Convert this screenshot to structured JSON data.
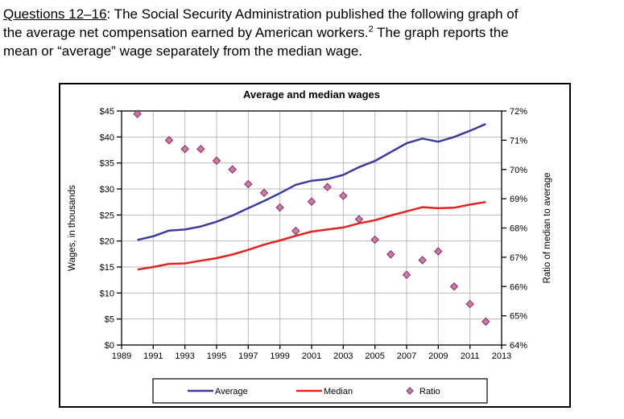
{
  "intro": {
    "line1": {
      "label": "Questions 12–16",
      "rest": ": The Social Security Administration published the following graph of"
    },
    "line2": {
      "pre": "the average net compensation earned by American workers.",
      "footnote_marker": "2",
      "post": " The graph reports the"
    },
    "line3": {
      "text": "mean or “average” wage separately from the median wage."
    }
  },
  "chart_data": {
    "type": "line",
    "title": "Average and median wages",
    "grid": true,
    "x_axis": {
      "range": [
        1989,
        2013
      ],
      "tick_labels": [
        "1989",
        "1991",
        "1993",
        "1995",
        "1997",
        "1999",
        "2001",
        "2003",
        "2005",
        "2007",
        "2009",
        "2011",
        "2013"
      ]
    },
    "y_axis_left": {
      "label": "Wages, in thousands",
      "range": [
        0,
        45
      ],
      "tick_labels": [
        "$45",
        "$40",
        "$35",
        "$30",
        "$25",
        "$20",
        "$15",
        "$10",
        "$5",
        "$0"
      ]
    },
    "y_axis_right": {
      "label": "Ratio of median to average",
      "range": [
        64,
        72
      ],
      "tick_labels": [
        "72%",
        "71%",
        "70%",
        "69%",
        "68%",
        "67%",
        "66%",
        "65%",
        "64%"
      ]
    },
    "series": [
      {
        "name": "Average",
        "style": "line",
        "axis": "left",
        "color": "#3c3c9e",
        "years": [
          1990,
          1991,
          1992,
          1993,
          1994,
          1995,
          1996,
          1997,
          1998,
          1999,
          2000,
          2001,
          2002,
          2003,
          2004,
          2005,
          2006,
          2007,
          2008,
          2009,
          2010,
          2011,
          2012
        ],
        "values": [
          20.2,
          20.9,
          22.0,
          22.2,
          22.8,
          23.7,
          24.9,
          26.3,
          27.7,
          29.2,
          30.8,
          31.6,
          31.9,
          32.7,
          34.2,
          35.4,
          37.1,
          38.8,
          39.7,
          39.1,
          40.0,
          41.2,
          42.5
        ]
      },
      {
        "name": "Median",
        "style": "line",
        "axis": "left",
        "color": "#e32222",
        "years": [
          1990,
          1991,
          1992,
          1993,
          1994,
          1995,
          1996,
          1997,
          1998,
          1999,
          2000,
          2001,
          2002,
          2003,
          2004,
          2005,
          2006,
          2007,
          2008,
          2009,
          2010,
          2011,
          2012
        ],
        "values": [
          14.5,
          15.0,
          15.6,
          15.7,
          16.2,
          16.7,
          17.4,
          18.3,
          19.3,
          20.1,
          21.0,
          21.8,
          22.2,
          22.6,
          23.4,
          24.0,
          24.9,
          25.7,
          26.5,
          26.3,
          26.4,
          27.0,
          27.5
        ]
      },
      {
        "name": "Ratio",
        "style": "scatter",
        "marker": "diamond",
        "axis": "right",
        "fill": "#cc7aa8",
        "stroke": "#7c2d62",
        "years": [
          1990,
          1992,
          1993,
          1994,
          1995,
          1996,
          1997,
          1998,
          1999,
          2000,
          2001,
          2002,
          2003,
          2004,
          2005,
          2006,
          2007,
          2008,
          2009,
          2010,
          2011,
          2012
        ],
        "values": [
          71.9,
          71.0,
          70.7,
          70.7,
          70.3,
          70.0,
          69.5,
          69.2,
          68.7,
          67.9,
          68.9,
          69.4,
          69.1,
          68.3,
          67.6,
          67.1,
          66.4,
          66.9,
          67.2,
          66.0,
          65.4,
          64.8
        ]
      }
    ],
    "legend": {
      "position": "bottom",
      "entries": [
        "Average",
        "Median",
        "Ratio"
      ]
    },
    "colors": {
      "grid": "#b8b8b8",
      "axis": "#000000"
    }
  }
}
